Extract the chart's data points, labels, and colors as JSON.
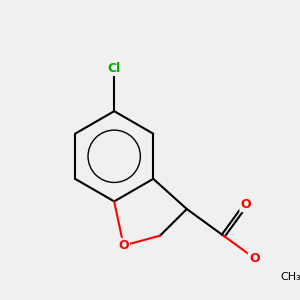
{
  "background_color": "#f0f0f0",
  "bond_color": "#000000",
  "bond_width": 1.5,
  "atom_colors": {
    "O": "#ff0000",
    "Cl": "#00aa00",
    "C": "#000000"
  },
  "font_size_atoms": 9,
  "font_size_methyl": 8
}
